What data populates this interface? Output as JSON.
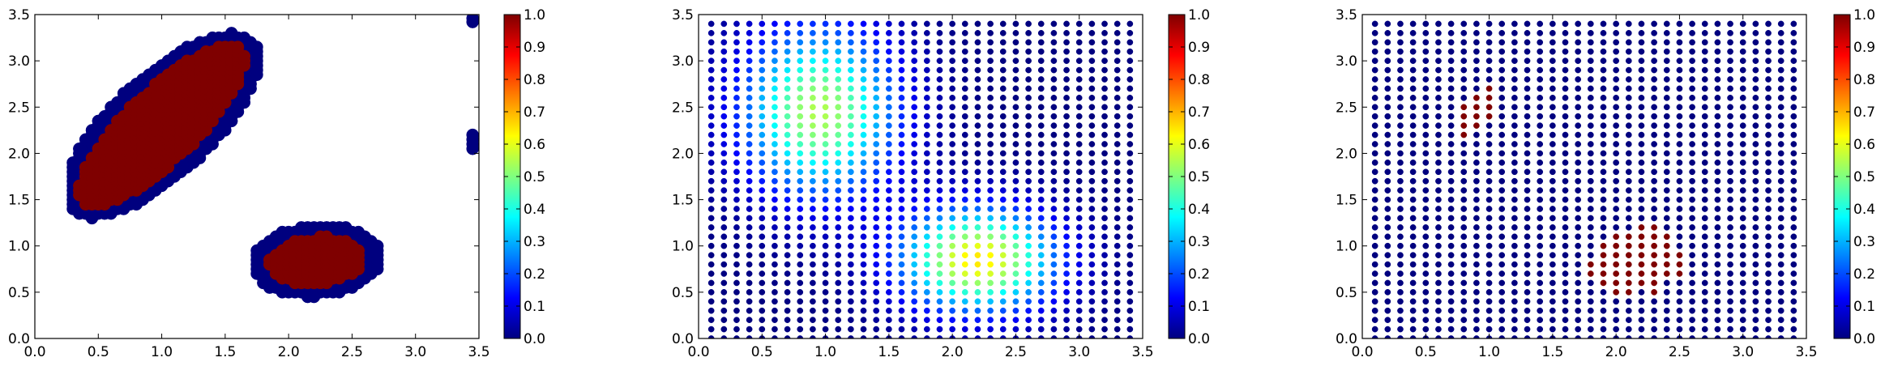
{
  "figure": {
    "panel_count": 3,
    "colormap": "jet",
    "colormap_stops": [
      "#00007f",
      "#0000ff",
      "#007fff",
      "#00ffff",
      "#7fff7f",
      "#ffff00",
      "#ff7f00",
      "#ff0000",
      "#7f0000"
    ]
  },
  "chart_data": [
    {
      "type": "scatter",
      "title": "",
      "xlabel": "",
      "ylabel": "",
      "xlim": [
        0,
        3.5
      ],
      "ylim": [
        0,
        3.5
      ],
      "xticks": [
        "0.0",
        "0.5",
        "1.0",
        "1.5",
        "2.0",
        "2.5",
        "3.0",
        "3.5"
      ],
      "yticks": [
        "0.0",
        "0.5",
        "1.0",
        "1.5",
        "2.0",
        "2.5",
        "3.0",
        "3.5"
      ],
      "colorbar": {
        "range": [
          0,
          1
        ],
        "ticks": [
          "0.0",
          "0.1",
          "0.2",
          "0.3",
          "0.4",
          "0.5",
          "0.6",
          "0.7",
          "0.8",
          "0.9",
          "1.0"
        ]
      },
      "grid": false,
      "marker_size": "large",
      "description_of_values": "binary classification: 1 inside two elongated blobs, 0 on their border band",
      "regions": [
        {
          "shape": "ellipse",
          "center": [
            1.0,
            2.3
          ],
          "semi_axes": [
            1.05,
            0.32
          ],
          "angle_deg": 55,
          "value": 1,
          "border_value": 0,
          "border_width": 0.13
        },
        {
          "shape": "ellipse",
          "center": [
            2.22,
            0.84
          ],
          "semi_axes": [
            0.38,
            0.26
          ],
          "angle_deg": 10,
          "value": 1,
          "border_value": 0,
          "border_width": 0.13
        },
        {
          "shape": "hole",
          "center": [
            2.2,
            0.8
          ],
          "half_size": [
            0.05,
            0.04
          ]
        }
      ],
      "outliers": [
        {
          "x": 3.45,
          "y": 3.42,
          "value": 0
        },
        {
          "x": 3.45,
          "y": 3.46,
          "value": 0
        },
        {
          "x": 3.45,
          "y": 2.2,
          "value": 0
        },
        {
          "x": 3.45,
          "y": 2.15,
          "value": 0
        },
        {
          "x": 3.45,
          "y": 2.1,
          "value": 0
        },
        {
          "x": 3.45,
          "y": 2.05,
          "value": 0
        }
      ]
    },
    {
      "type": "scatter",
      "title": "",
      "xlabel": "",
      "ylabel": "",
      "xlim": [
        0,
        3.5
      ],
      "ylim": [
        0,
        3.5
      ],
      "xticks": [
        "0.0",
        "0.5",
        "1.0",
        "1.5",
        "2.0",
        "2.5",
        "3.0",
        "3.5"
      ],
      "yticks": [
        "0.0",
        "0.5",
        "1.0",
        "1.5",
        "2.0",
        "2.5",
        "3.0",
        "3.5"
      ],
      "colorbar": {
        "range": [
          0,
          1
        ],
        "ticks": [
          "0.0",
          "0.1",
          "0.2",
          "0.3",
          "0.4",
          "0.5",
          "0.6",
          "0.7",
          "0.8",
          "0.9",
          "1.0"
        ]
      },
      "grid": false,
      "marker_size": "small",
      "grid_points": {
        "x_start": 0.1,
        "x_step": 0.1,
        "x_count": 34,
        "y_start": 0.0,
        "y_step": 0.1,
        "y_count": 35
      },
      "description_of_values": "smooth field: two Gaussian bumps on a regular grid",
      "bumps": [
        {
          "center": [
            0.95,
            2.45
          ],
          "sigma": [
            0.42,
            0.62
          ],
          "peak": 0.55
        },
        {
          "center": [
            2.2,
            0.85
          ],
          "sigma": [
            0.42,
            0.38
          ],
          "peak": 0.65
        }
      ]
    },
    {
      "type": "scatter",
      "title": "",
      "xlabel": "",
      "ylabel": "",
      "xlim": [
        0,
        3.5
      ],
      "ylim": [
        0,
        3.5
      ],
      "xticks": [
        "0.0",
        "0.5",
        "1.0",
        "1.5",
        "2.0",
        "2.5",
        "3.0",
        "3.5"
      ],
      "yticks": [
        "0.0",
        "0.5",
        "1.0",
        "1.5",
        "2.0",
        "2.5",
        "3.0",
        "3.5"
      ],
      "colorbar": {
        "range": [
          0,
          1
        ],
        "ticks": [
          "0.0",
          "0.1",
          "0.2",
          "0.3",
          "0.4",
          "0.5",
          "0.6",
          "0.7",
          "0.8",
          "0.9",
          "1.0"
        ]
      },
      "grid": false,
      "marker_size": "small",
      "grid_points": {
        "x_start": 0.1,
        "x_step": 0.1,
        "x_count": 34,
        "y_start": 0.0,
        "y_step": 0.1,
        "y_count": 35
      },
      "description_of_values": "thresholded field: value 1 at a small set of grid points, 0 elsewhere",
      "high_points": [
        [
          0.8,
          2.2
        ],
        [
          0.8,
          2.3
        ],
        [
          0.8,
          2.4
        ],
        [
          0.8,
          2.5
        ],
        [
          0.9,
          2.3
        ],
        [
          0.9,
          2.4
        ],
        [
          0.9,
          2.5
        ],
        [
          0.9,
          2.6
        ],
        [
          1.0,
          2.4
        ],
        [
          1.0,
          2.5
        ],
        [
          1.0,
          2.6
        ],
        [
          1.0,
          2.7
        ],
        [
          1.8,
          0.7
        ],
        [
          1.8,
          0.8
        ],
        [
          1.9,
          0.6
        ],
        [
          1.9,
          0.7
        ],
        [
          1.9,
          0.8
        ],
        [
          1.9,
          0.9
        ],
        [
          1.9,
          1.0
        ],
        [
          2.0,
          0.5
        ],
        [
          2.0,
          0.6
        ],
        [
          2.0,
          0.7
        ],
        [
          2.0,
          0.8
        ],
        [
          2.0,
          0.9
        ],
        [
          2.0,
          1.0
        ],
        [
          2.0,
          1.1
        ],
        [
          2.1,
          0.5
        ],
        [
          2.1,
          0.6
        ],
        [
          2.1,
          0.7
        ],
        [
          2.1,
          0.8
        ],
        [
          2.1,
          0.9
        ],
        [
          2.1,
          1.0
        ],
        [
          2.1,
          1.1
        ],
        [
          2.2,
          0.6
        ],
        [
          2.2,
          0.7
        ],
        [
          2.2,
          0.8
        ],
        [
          2.2,
          0.9
        ],
        [
          2.2,
          1.0
        ],
        [
          2.2,
          1.1
        ],
        [
          2.2,
          1.2
        ],
        [
          2.3,
          0.5
        ],
        [
          2.3,
          0.6
        ],
        [
          2.3,
          0.7
        ],
        [
          2.3,
          0.8
        ],
        [
          2.3,
          0.9
        ],
        [
          2.3,
          1.0
        ],
        [
          2.3,
          1.1
        ],
        [
          2.3,
          1.2
        ],
        [
          2.4,
          0.7
        ],
        [
          2.4,
          0.8
        ],
        [
          2.4,
          0.9
        ],
        [
          2.4,
          1.0
        ],
        [
          2.4,
          1.1
        ],
        [
          2.5,
          0.7
        ],
        [
          2.5,
          0.8
        ],
        [
          2.5,
          0.9
        ]
      ]
    }
  ]
}
